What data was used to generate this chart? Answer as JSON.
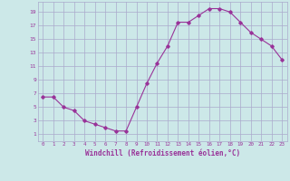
{
  "x": [
    0,
    1,
    2,
    3,
    4,
    5,
    6,
    7,
    8,
    9,
    10,
    11,
    12,
    13,
    14,
    15,
    16,
    17,
    18,
    19,
    20,
    21,
    22,
    23
  ],
  "y": [
    6.5,
    6.5,
    5.0,
    4.5,
    3.0,
    2.5,
    2.0,
    1.5,
    1.5,
    5.0,
    8.5,
    11.5,
    14.0,
    17.5,
    17.5,
    18.5,
    19.5,
    19.5,
    19.0,
    17.5,
    16.0,
    15.0,
    14.0,
    12.0
  ],
  "line_color": "#993399",
  "marker": "D",
  "marker_size": 1.8,
  "background_color": "#cce8e8",
  "grid_color": "#aaaacc",
  "xlabel": "Windchill (Refroidissement éolien,°C)",
  "xlabel_color": "#993399",
  "tick_color": "#993399",
  "xlim": [
    -0.5,
    23.5
  ],
  "ylim": [
    0,
    20.5
  ],
  "yticks": [
    1,
    3,
    5,
    7,
    9,
    11,
    13,
    15,
    17,
    19
  ],
  "xticks": [
    0,
    1,
    2,
    3,
    4,
    5,
    6,
    7,
    8,
    9,
    10,
    11,
    12,
    13,
    14,
    15,
    16,
    17,
    18,
    19,
    20,
    21,
    22,
    23
  ]
}
